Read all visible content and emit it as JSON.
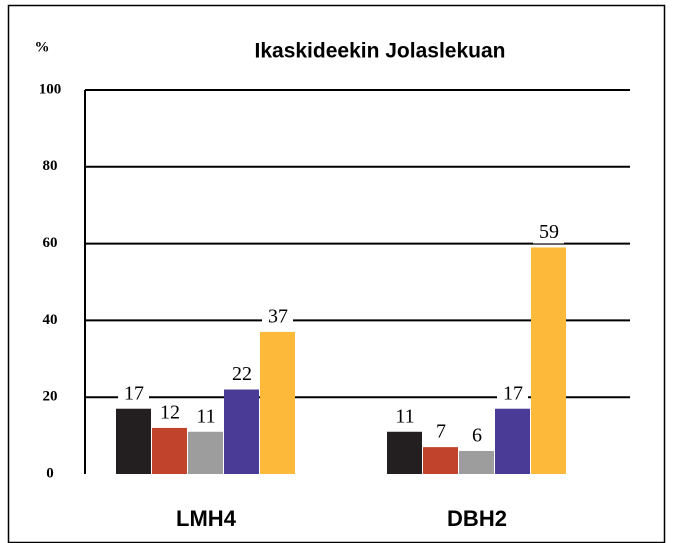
{
  "chart_data": {
    "type": "bar",
    "title": "Ikaskideekin Jolaslekuan",
    "y_label": "%",
    "categories": [
      "LMH4",
      "DBH2"
    ],
    "series": [
      {
        "color": "#231f20",
        "values": [
          17,
          11
        ]
      },
      {
        "color": "#c1432b",
        "values": [
          12,
          7
        ]
      },
      {
        "color": "#9d9d9d",
        "values": [
          11,
          6
        ]
      },
      {
        "color": "#4a3b96",
        "values": [
          22,
          17
        ]
      },
      {
        "color": "#fdb93a",
        "values": [
          37,
          59
        ]
      }
    ],
    "ylim": [
      0,
      100
    ],
    "yticks": [
      0,
      20,
      40,
      60,
      80,
      100
    ],
    "grid": true
  }
}
